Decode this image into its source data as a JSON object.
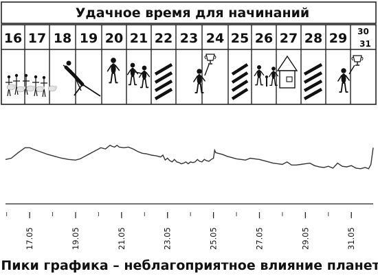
{
  "header": {
    "title": "Удачное время для начинаний"
  },
  "days": [
    {
      "label": "16",
      "icon": "people-with-sheep-icon"
    },
    {
      "label": "17",
      "icon": "people-with-sheep-icon"
    },
    {
      "label": "18",
      "icon": "stretching-person-icon"
    },
    {
      "label": "19",
      "icon": "stretching-person-icon"
    },
    {
      "label": "20",
      "icon": "person-icon"
    },
    {
      "label": "21",
      "icon": "handshake-icon"
    },
    {
      "label": "22",
      "icon": "unfavorable-stripes-icon"
    },
    {
      "label": "23",
      "icon": "person-with-trophy-icon"
    },
    {
      "label": "24",
      "icon": "person-with-trophy-icon"
    },
    {
      "label": "25",
      "icon": "unfavorable-stripes-icon"
    },
    {
      "label": "26",
      "icon": "family-house-icon"
    },
    {
      "label": "27",
      "icon": "family-house-icon"
    },
    {
      "label": "28",
      "icon": "unfavorable-stripes-icon"
    },
    {
      "label": "29",
      "icon": "person-with-trophy-icon"
    },
    {
      "label": "30",
      "icon": "person-with-trophy-icon"
    },
    {
      "label": "31",
      "icon": "person-with-trophy-icon"
    }
  ],
  "chart_data": {
    "type": "line",
    "title": "",
    "xlabel": "",
    "ylabel": "",
    "x_ticks": [
      "17.05",
      "19.05",
      "21.05",
      "23.05",
      "25.05",
      "27.05",
      "29.05",
      "31.05"
    ],
    "x_tick_days": [
      17,
      19,
      21,
      23,
      25,
      27,
      29,
      31
    ],
    "x_range": [
      15.95,
      31.95
    ],
    "y_range": [
      0,
      10
    ],
    "y_axis_visible": false,
    "grid": false,
    "legend": "none",
    "series": [
      {
        "values_note": "",
        "x": [
          15.95,
          16.2,
          16.5,
          16.8,
          17.0,
          17.2,
          17.5,
          17.8,
          18.1,
          18.4,
          18.7,
          19.0,
          19.2,
          19.5,
          19.8,
          20.1,
          20.3,
          20.5,
          20.6,
          20.7,
          20.8,
          20.9,
          21.1,
          21.3,
          21.5,
          21.7,
          21.9,
          22.1,
          22.3,
          22.5,
          22.7,
          22.8,
          22.9,
          23.0,
          23.1,
          23.2,
          23.3,
          23.4,
          23.5,
          23.6,
          23.7,
          23.8,
          23.9,
          24.0,
          24.1,
          24.2,
          24.3,
          24.4,
          24.5,
          24.6,
          24.7,
          24.8,
          24.9,
          25.0,
          25.05,
          25.1,
          25.2,
          25.4,
          25.6,
          25.8,
          26.0,
          26.2,
          26.4,
          26.6,
          26.8,
          27.0,
          27.2,
          27.4,
          27.6,
          27.8,
          28.0,
          28.2,
          28.4,
          28.6,
          28.8,
          29.0,
          29.2,
          29.4,
          29.6,
          29.8,
          30.0,
          30.2,
          30.4,
          30.6,
          30.8,
          31.0,
          31.2,
          31.4,
          31.6,
          31.75,
          31.85,
          31.95
        ],
        "y": [
          5.3,
          5.5,
          6.4,
          7.2,
          7.2,
          6.9,
          6.5,
          6.1,
          5.8,
          5.5,
          5.3,
          5.2,
          5.4,
          6.0,
          6.6,
          7.2,
          7.0,
          7.6,
          7.4,
          7.3,
          7.6,
          7.3,
          7.2,
          7.3,
          7.0,
          6.6,
          6.3,
          6.2,
          6.0,
          5.9,
          5.7,
          6.0,
          5.2,
          5.5,
          5.1,
          4.9,
          5.3,
          4.9,
          4.8,
          4.6,
          4.7,
          4.9,
          4.6,
          4.9,
          4.8,
          4.9,
          5.3,
          5.0,
          4.9,
          5.3,
          5.1,
          5.0,
          5.3,
          5.5,
          6.8,
          6.4,
          6.3,
          6.1,
          5.8,
          5.6,
          5.4,
          5.3,
          5.2,
          5.5,
          5.4,
          5.3,
          5.1,
          4.9,
          4.7,
          4.6,
          4.5,
          4.9,
          4.4,
          4.4,
          4.5,
          4.6,
          4.7,
          4.3,
          4.1,
          4.0,
          4.2,
          3.9,
          4.7,
          4.2,
          4.1,
          4.3,
          3.9,
          3.8,
          4.0,
          3.8,
          4.5,
          7.2
        ]
      }
    ]
  },
  "footer": {
    "caption": "Пики графика – неблагоприятное влияние планет"
  }
}
